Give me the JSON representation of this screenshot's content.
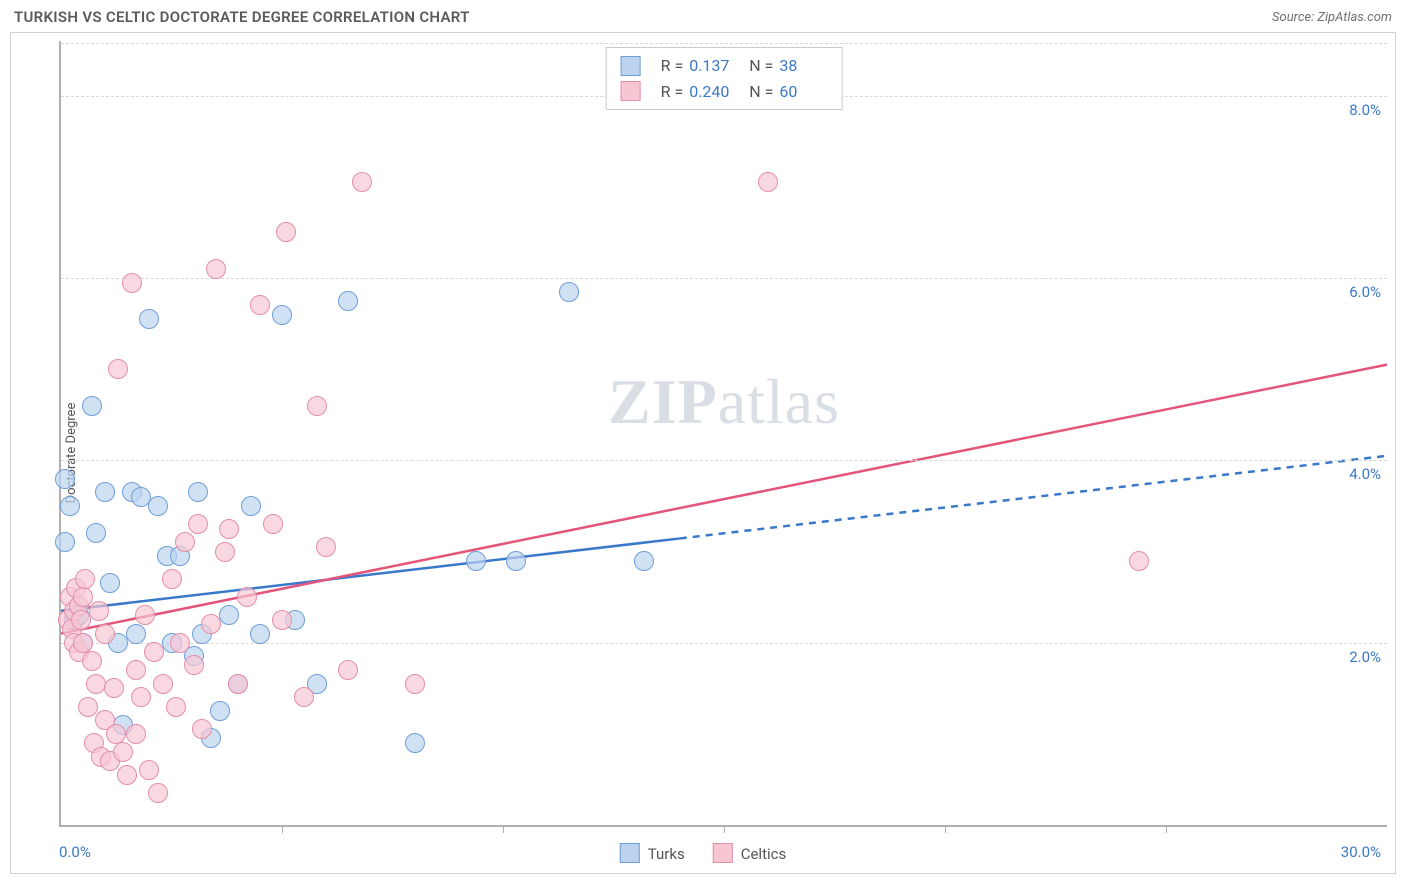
{
  "header": {
    "title": "TURKISH VS CELTIC DOCTORATE DEGREE CORRELATION CHART",
    "source": "Source: ZipAtlas.com"
  },
  "watermark": {
    "bold": "ZIP",
    "light": "atlas"
  },
  "chart": {
    "type": "scatter",
    "ylabel": "Doctorate Degree",
    "xlim": [
      0,
      30
    ],
    "ylim": [
      0,
      8.6
    ],
    "x_tick_step": 5,
    "y_ticks": [
      2,
      4,
      6,
      8
    ],
    "y_tick_labels": [
      "2.0%",
      "4.0%",
      "6.0%",
      "8.0%"
    ],
    "x_start_label": "0.0%",
    "x_end_label": "30.0%",
    "background_color": "#ffffff",
    "grid_color": "#d8d8d8",
    "axis_color": "#b0b0b0",
    "tick_label_color": "#3a78c9",
    "marker_radius": 10,
    "marker_stroke_width": 1.5,
    "trend_line_width": 2.5,
    "series": [
      {
        "name": "Turks",
        "fill": "#bcd3ef",
        "stroke": "#6f9fd8",
        "R": "0.137",
        "N": "38",
        "trend": {
          "x1": 0,
          "y1": 2.35,
          "x2": 30,
          "y2": 4.05,
          "solid_until_x": 14,
          "dash": "7 6",
          "color": "#3a78c9"
        },
        "points": [
          [
            0.1,
            3.8
          ],
          [
            0.1,
            3.1
          ],
          [
            0.2,
            3.5
          ],
          [
            0.3,
            2.25
          ],
          [
            0.4,
            2.3
          ],
          [
            0.5,
            2.0
          ],
          [
            0.7,
            4.6
          ],
          [
            0.8,
            3.2
          ],
          [
            1.0,
            3.65
          ],
          [
            1.1,
            2.65
          ],
          [
            1.3,
            2.0
          ],
          [
            1.4,
            1.1
          ],
          [
            1.6,
            3.65
          ],
          [
            1.7,
            2.1
          ],
          [
            1.8,
            3.6
          ],
          [
            2.0,
            5.55
          ],
          [
            2.2,
            3.5
          ],
          [
            2.4,
            2.95
          ],
          [
            2.5,
            2.0
          ],
          [
            2.7,
            2.95
          ],
          [
            3.0,
            1.85
          ],
          [
            3.1,
            3.65
          ],
          [
            3.2,
            2.1
          ],
          [
            3.4,
            0.95
          ],
          [
            3.6,
            1.25
          ],
          [
            3.8,
            2.3
          ],
          [
            4.0,
            1.55
          ],
          [
            4.3,
            3.5
          ],
          [
            4.5,
            2.1
          ],
          [
            5.0,
            5.6
          ],
          [
            5.3,
            2.25
          ],
          [
            5.8,
            1.55
          ],
          [
            6.5,
            5.75
          ],
          [
            8.0,
            0.9
          ],
          [
            9.4,
            2.9
          ],
          [
            10.3,
            2.9
          ],
          [
            11.5,
            5.85
          ],
          [
            13.2,
            2.9
          ]
        ]
      },
      {
        "name": "Celtics",
        "fill": "#f6c6d3",
        "stroke": "#e48fa9",
        "R": "0.240",
        "N": "60",
        "trend": {
          "x1": 0,
          "y1": 2.1,
          "x2": 30,
          "y2": 5.05,
          "solid_until_x": 30,
          "dash": "",
          "color": "#e4557c"
        },
        "points": [
          [
            0.15,
            2.25
          ],
          [
            0.2,
            2.5
          ],
          [
            0.25,
            2.15
          ],
          [
            0.3,
            2.35
          ],
          [
            0.3,
            2.0
          ],
          [
            0.35,
            2.6
          ],
          [
            0.4,
            2.4
          ],
          [
            0.4,
            1.9
          ],
          [
            0.45,
            2.25
          ],
          [
            0.5,
            2.5
          ],
          [
            0.5,
            2.0
          ],
          [
            0.55,
            2.7
          ],
          [
            0.6,
            1.3
          ],
          [
            0.7,
            1.8
          ],
          [
            0.75,
            0.9
          ],
          [
            0.8,
            1.55
          ],
          [
            0.85,
            2.35
          ],
          [
            0.9,
            0.75
          ],
          [
            1.0,
            1.15
          ],
          [
            1.0,
            2.1
          ],
          [
            1.1,
            0.7
          ],
          [
            1.2,
            1.5
          ],
          [
            1.25,
            1.0
          ],
          [
            1.3,
            5.0
          ],
          [
            1.4,
            0.8
          ],
          [
            1.5,
            0.55
          ],
          [
            1.6,
            5.95
          ],
          [
            1.7,
            1.7
          ],
          [
            1.7,
            1.0
          ],
          [
            1.8,
            1.4
          ],
          [
            1.9,
            2.3
          ],
          [
            2.0,
            0.6
          ],
          [
            2.1,
            1.9
          ],
          [
            2.2,
            0.35
          ],
          [
            2.3,
            1.55
          ],
          [
            2.5,
            2.7
          ],
          [
            2.6,
            1.3
          ],
          [
            2.7,
            2.0
          ],
          [
            2.8,
            3.1
          ],
          [
            3.0,
            1.75
          ],
          [
            3.1,
            3.3
          ],
          [
            3.2,
            1.05
          ],
          [
            3.4,
            2.2
          ],
          [
            3.5,
            6.1
          ],
          [
            3.7,
            3.0
          ],
          [
            3.8,
            3.25
          ],
          [
            4.0,
            1.55
          ],
          [
            4.2,
            2.5
          ],
          [
            4.5,
            5.7
          ],
          [
            4.8,
            3.3
          ],
          [
            5.0,
            2.25
          ],
          [
            5.1,
            6.5
          ],
          [
            5.5,
            1.4
          ],
          [
            5.8,
            4.6
          ],
          [
            6.0,
            3.05
          ],
          [
            6.5,
            1.7
          ],
          [
            6.8,
            7.05
          ],
          [
            8.0,
            1.55
          ],
          [
            16.0,
            7.05
          ],
          [
            24.4,
            2.9
          ]
        ]
      }
    ],
    "bottom_legend": [
      {
        "label": "Turks",
        "fill": "#bcd3ef",
        "stroke": "#6f9fd8"
      },
      {
        "label": "Celtics",
        "fill": "#f6c6d3",
        "stroke": "#e48fa9"
      }
    ]
  }
}
